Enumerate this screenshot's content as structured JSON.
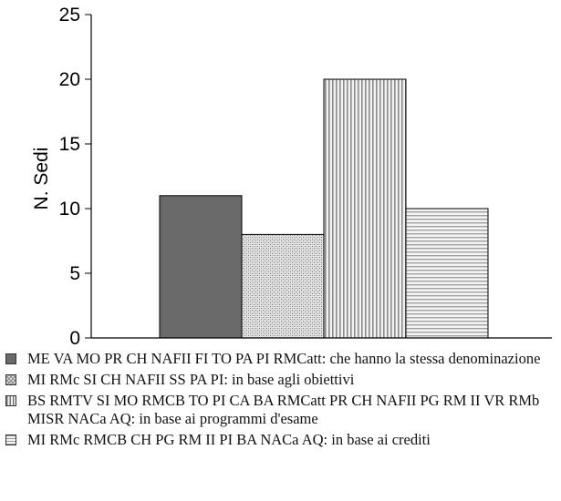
{
  "chart_data": {
    "type": "bar",
    "title": "",
    "ylabel": "N. Sedi",
    "xlabel": "",
    "ylim": [
      0,
      25
    ],
    "yticks": [
      0,
      5,
      10,
      15,
      20,
      25
    ],
    "grid": false,
    "legend_position": "bottom",
    "series": [
      {
        "name": "ME VA MO PR CH NAFII FI TO PA PI RMCatt: che hanno la stessa denominazione",
        "value": 11,
        "pattern": "solid-gray"
      },
      {
        "name": "MI RMc SI CH NAFII SS PA PI: in base agli obiettivi",
        "value": 8,
        "pattern": "crosshatch"
      },
      {
        "name": "BS RMTV SI MO RMCB TO PI CA BA RMCatt PR CH NAFII PG RM II VR RMb MISR NACa AQ: in base ai programmi d'esame",
        "value": 20,
        "pattern": "vertical-stripes"
      },
      {
        "name": "MI RMc RMCB CH PG RM II PI BA NACa AQ: in base ai crediti",
        "value": 10,
        "pattern": "horizontal-stripes"
      }
    ]
  }
}
